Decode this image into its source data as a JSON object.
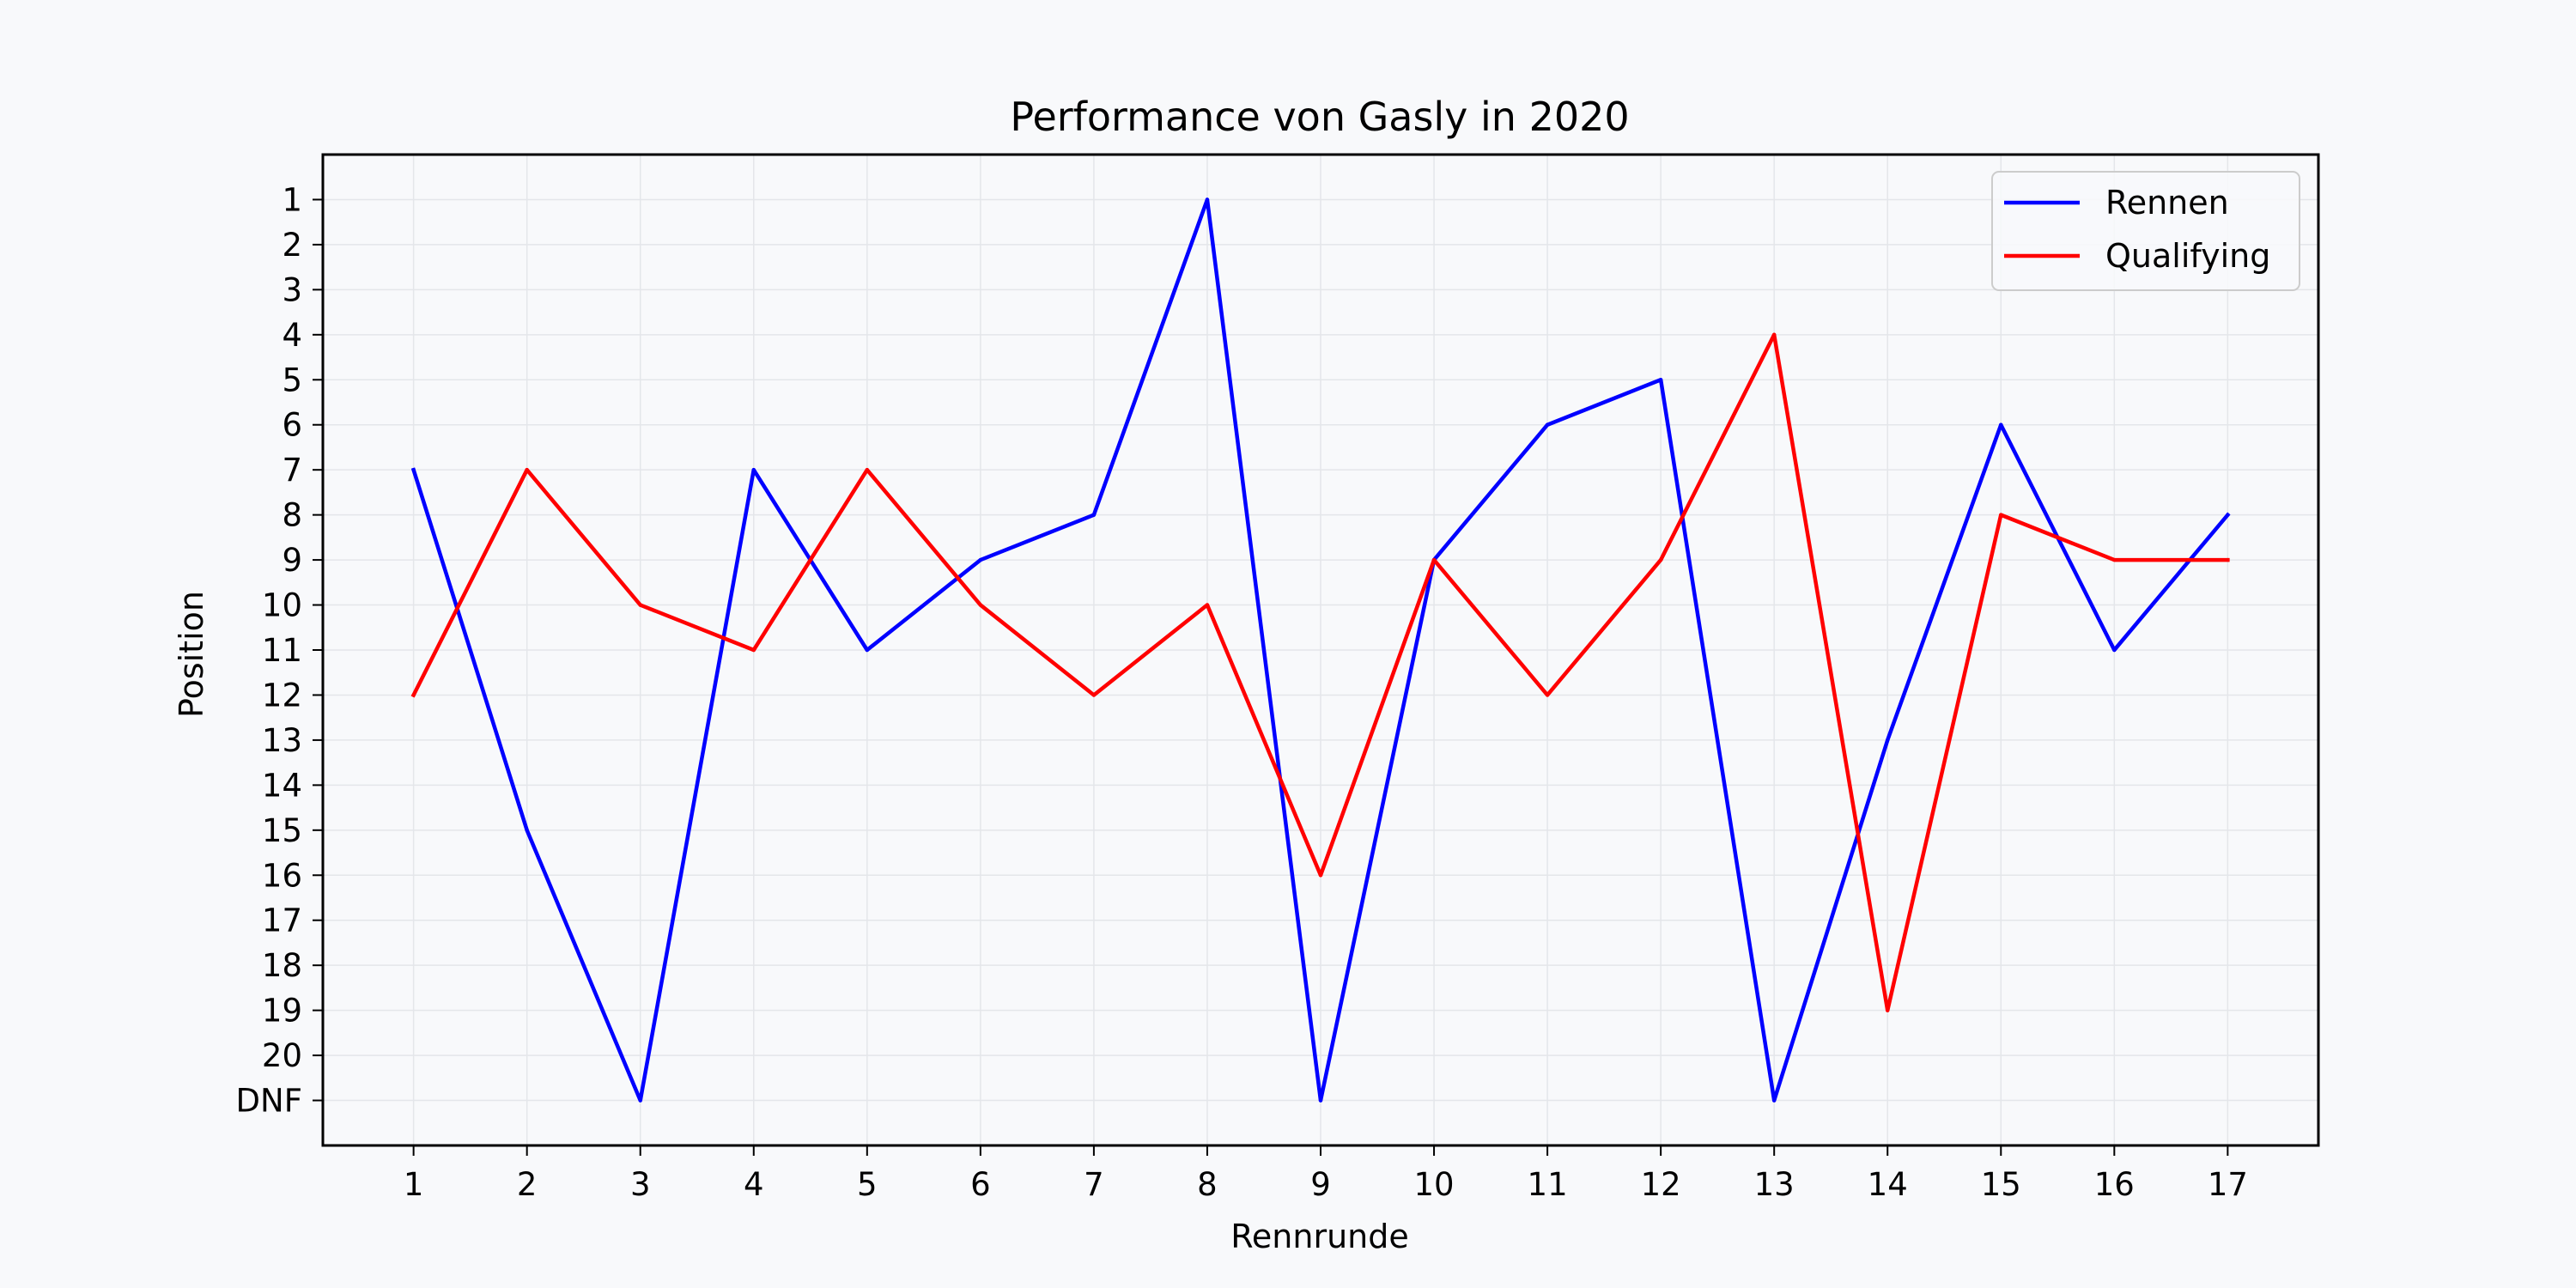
{
  "chart_data": {
    "type": "line",
    "title": "Performance von Gasly in 2020",
    "xlabel": "Rennrunde",
    "ylabel": "Position",
    "x": [
      1,
      2,
      3,
      4,
      5,
      6,
      7,
      8,
      9,
      10,
      11,
      12,
      13,
      14,
      15,
      16,
      17
    ],
    "y_tick_labels": [
      "1",
      "2",
      "3",
      "4",
      "5",
      "6",
      "7",
      "8",
      "9",
      "10",
      "11",
      "12",
      "13",
      "14",
      "15",
      "16",
      "17",
      "18",
      "19",
      "20",
      "DNF"
    ],
    "y_inverted": true,
    "ylim": [
      22,
      0
    ],
    "xlim": [
      0.2,
      17.8
    ],
    "grid": true,
    "legend_position": "top-right",
    "series": [
      {
        "name": "Rennen",
        "color": "#0000ff",
        "values": [
          7,
          15,
          21,
          7,
          11,
          9,
          8,
          1,
          21,
          9,
          6,
          5,
          21,
          13,
          6,
          11,
          8
        ]
      },
      {
        "name": "Qualifying",
        "color": "#ff0000",
        "values": [
          12,
          7,
          10,
          11,
          7,
          10,
          12,
          10,
          16,
          9,
          12,
          9,
          4,
          19,
          8,
          9,
          9
        ]
      }
    ]
  }
}
